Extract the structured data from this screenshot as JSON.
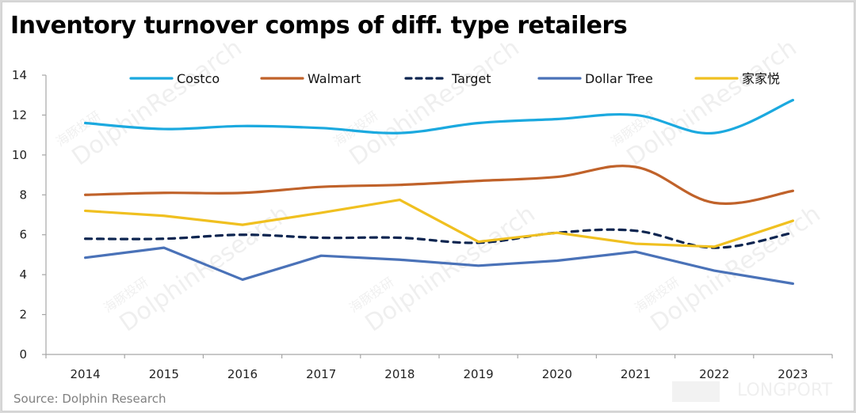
{
  "page": {
    "title": "Inventory turnover comps of diff. type retailers",
    "source": "Source: Dolphin Research",
    "watermarks": [
      "DolphinResearch",
      "海豚投研",
      "LONGPORT"
    ]
  },
  "chart_data": {
    "type": "line",
    "title": "Inventory turnover comps of diff. type retailers",
    "xlabel": "",
    "ylabel": "",
    "x": [
      "2014",
      "2015",
      "2016",
      "2017",
      "2018",
      "2019",
      "2020",
      "2021",
      "2022",
      "2023"
    ],
    "ylim": [
      0,
      14
    ],
    "yticks": [
      0,
      2,
      4,
      6,
      8,
      10,
      12,
      14
    ],
    "grid": false,
    "legend_position": "top",
    "series": [
      {
        "name": "Costco",
        "color": "#1ba9df",
        "style": "solid",
        "smooth": true,
        "values": [
          11.6,
          11.3,
          11.45,
          11.35,
          11.1,
          11.6,
          11.8,
          12.0,
          11.1,
          12.75
        ]
      },
      {
        "name": "Walmart",
        "color": "#c0622a",
        "style": "solid",
        "smooth": true,
        "values": [
          8.0,
          8.1,
          8.1,
          8.4,
          8.5,
          8.7,
          8.9,
          9.4,
          7.6,
          8.2
        ]
      },
      {
        "name": "Target",
        "color": "#0d2550",
        "style": "dashed",
        "smooth": true,
        "values": [
          5.8,
          5.8,
          6.0,
          5.85,
          5.85,
          5.6,
          6.1,
          6.2,
          5.35,
          6.1
        ]
      },
      {
        "name": "Dollar Tree",
        "color": "#4a72b8",
        "style": "solid",
        "smooth": false,
        "values": [
          4.85,
          5.35,
          3.75,
          4.95,
          4.75,
          4.45,
          4.7,
          5.15,
          4.2,
          3.55
        ]
      },
      {
        "name": "家家悦",
        "color": "#f0c020",
        "style": "solid",
        "smooth": false,
        "values": [
          7.2,
          6.95,
          6.5,
          7.1,
          7.75,
          5.65,
          6.1,
          5.55,
          5.4,
          6.7
        ]
      }
    ]
  }
}
